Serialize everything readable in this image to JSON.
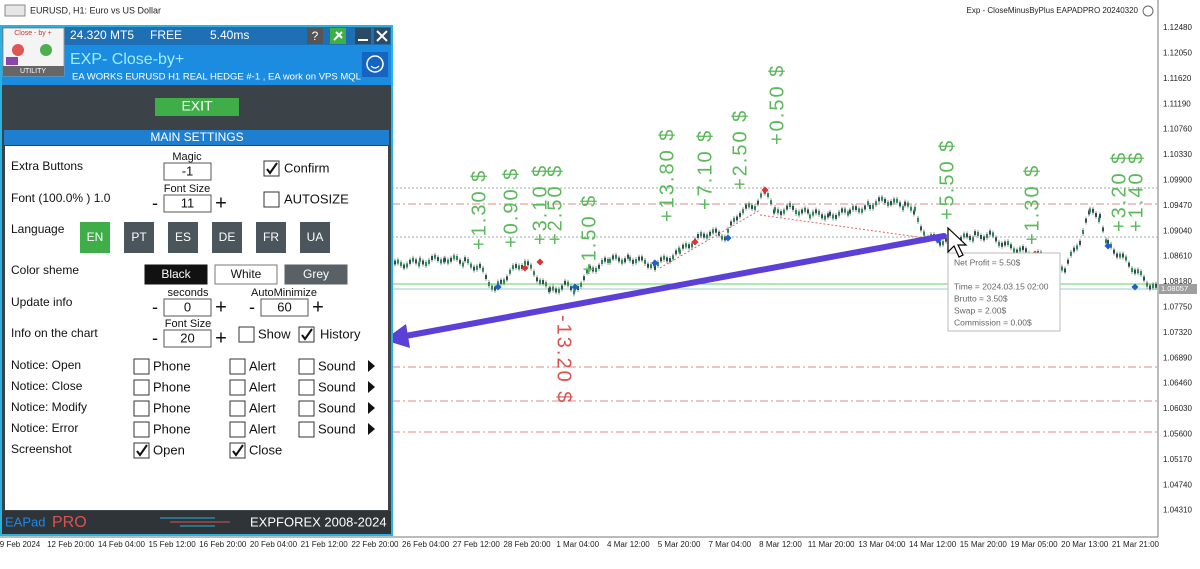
{
  "window": {
    "title": "EURUSD, H1:  Euro vs US Dollar",
    "expert": "Exp - CloseMinusByPlus EAPADPRO 20240320"
  },
  "panel": {
    "stats": [
      "24.320 MT5",
      "FREE",
      "5.40ms"
    ],
    "help": "?",
    "logo": {
      "top": "Close - by +",
      "bottom": "UTILITY"
    },
    "title": "EXP- Close-by+",
    "subtitle": "EA WORKS EURUSD H1 REAL HEDGE #-1 , EA work on VPS MQL",
    "exit": "EXIT",
    "section": "MAIN SETTINGS",
    "minus": "-",
    "plus": "+",
    "extra_buttons": {
      "label": "Extra Buttons",
      "magic_label": "Magic",
      "magic": "-1",
      "confirm": "Confirm"
    },
    "font": {
      "label": "Font  (100.0% ) 1.0",
      "size_label": "Font Size",
      "size": "11",
      "autosize": "AUTOSIZE"
    },
    "language": {
      "label": "Language",
      "options": [
        "EN",
        "PT",
        "ES",
        "DE",
        "FR",
        "UA"
      ]
    },
    "color_scheme": {
      "label": "Color sheme",
      "options": [
        "Black",
        "White",
        "Grey"
      ]
    },
    "update_info": {
      "label": "Update info",
      "seconds_label": "seconds",
      "seconds": "0",
      "autominimize_label": "AutoMinimize",
      "autominimize": "60"
    },
    "info_chart": {
      "label": "Info on the chart",
      "size_label": "Font Size",
      "size": "20",
      "show": "Show",
      "history": "History"
    },
    "notices": {
      "rows": [
        "Notice: Open",
        "Notice: Close",
        "Notice: Modify",
        "Notice: Error"
      ],
      "channels": [
        "Phone",
        "Alert",
        "Sound"
      ]
    },
    "screenshot": {
      "label": "Screenshot",
      "options": [
        "Open",
        "Close"
      ]
    },
    "footer": {
      "brand": "EAPad",
      "brand_pro": "PRO",
      "copyright": "EXPFOREX 2008-2024"
    }
  },
  "chart": {
    "price_axis": [
      "1.12480",
      "1.12050",
      "1.11620",
      "1.11190",
      "1.10760",
      "1.10330",
      "1.09900",
      "1.09470",
      "1.09040",
      "1.08610",
      "1.08180",
      "1.07750",
      "1.07320",
      "1.06890",
      "1.06460",
      "1.06030",
      "1.05600",
      "1.05170",
      "1.04740",
      "1.04310"
    ],
    "current_price": "1.08057",
    "time_axis": [
      "9 Feb 2024",
      "12 Feb 20:00",
      "14 Feb 04:00",
      "15 Feb 12:00",
      "16 Feb 20:00",
      "20 Feb 04:00",
      "21 Feb 12:00",
      "22 Feb 20:00",
      "26 Feb 04:00",
      "27 Feb 12:00",
      "28 Feb 20:00",
      "1 Mar 04:00",
      "4 Mar 12:00",
      "5 Mar 20:00",
      "7 Mar 04:00",
      "8 Mar 12:00",
      "11 Mar 20:00",
      "13 Mar 04:00",
      "14 Mar 12:00",
      "15 Mar 20:00",
      "19 Mar 05:00",
      "20 Mar 13:00",
      "21 Mar 21:00"
    ],
    "trade_labels": [
      {
        "text": "+1.30 $",
        "color": "#5cb85c"
      },
      {
        "text": "+0.90 $",
        "color": "#5cb85c"
      },
      {
        "text": "+3.10 $",
        "color": "#5cb85c"
      },
      {
        "text": "+2.50 $",
        "color": "#5cb85c"
      },
      {
        "text": "+1.50 $",
        "color": "#5cb85c"
      },
      {
        "text": "+13.80 $",
        "color": "#5cb85c"
      },
      {
        "text": "+7.10 $",
        "color": "#5cb85c"
      },
      {
        "text": "+2.50 $",
        "color": "#5cb85c"
      },
      {
        "text": "+0.50 $",
        "color": "#5cb85c"
      },
      {
        "text": "-13.20 $",
        "color": "#d9534f"
      },
      {
        "text": "+5.50 $",
        "color": "#5cb85c"
      },
      {
        "text": "+1.30 $",
        "color": "#5cb85c"
      },
      {
        "text": "+3.20 $",
        "color": "#5cb85c"
      },
      {
        "text": "+1.40 $",
        "color": "#5cb85c"
      }
    ],
    "tooltip": [
      "Net Profit = 5.50$",
      "Time = 2024.03.15 02:00",
      "Brutto = 3.50$",
      "Swap = 2.00$",
      "Commission = 0.00$"
    ]
  }
}
